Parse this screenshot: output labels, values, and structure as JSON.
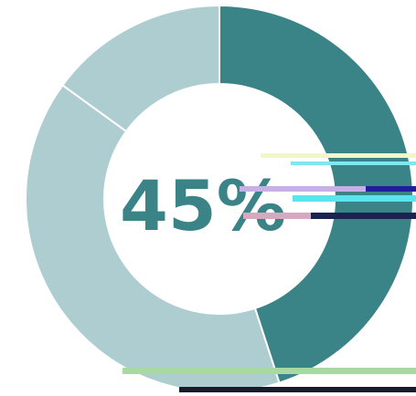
{
  "chart_data": {
    "type": "pie",
    "style": "donut",
    "center_label": "45%",
    "slices": [
      {
        "value": 45,
        "color": "#3a8487"
      },
      {
        "value": 40,
        "color": "#adcdd0"
      },
      {
        "value": 15,
        "color": "#adcdd0"
      }
    ],
    "start_angle_deg": 0,
    "direction": "clockwise",
    "slice_separator_color": "#ffffff"
  },
  "colors": {
    "accent": "#3a8487",
    "muted": "#adcdd0",
    "background": "#ffffff",
    "label": "#3a8487"
  }
}
